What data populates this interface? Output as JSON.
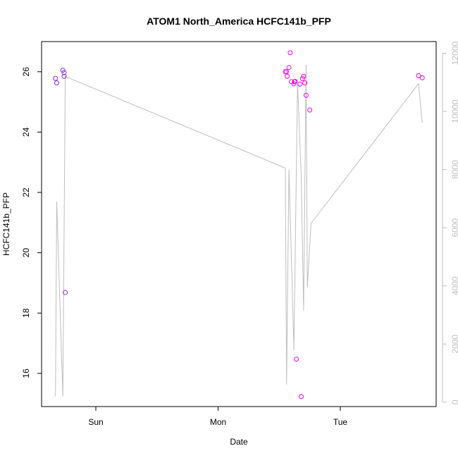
{
  "chart_data": {
    "type": "scatter",
    "title": "ATOM1 North_America HCFC141b_PFP",
    "xlabel": "Date",
    "ylabel": "HCFC141b_PFP",
    "x_ticks": [
      "Sun",
      "Mon",
      "Tue"
    ],
    "y_ticks": [
      16,
      18,
      20,
      22,
      24,
      26
    ],
    "y2_ticks": [
      0,
      2000,
      4000,
      6000,
      8000,
      10000,
      12000
    ],
    "ylim": [
      14.9,
      27.0
    ],
    "y2lim": [
      -150,
      12400
    ],
    "grid": false,
    "colors": {
      "points_early": "#8a2be2",
      "points_late": "#ee00ee",
      "line": "#bebebe",
      "right_axis": "#bdbdbd"
    },
    "series": [
      {
        "kind": "points",
        "axis": "left",
        "x_days": [
          -0.33,
          -0.32,
          -0.27,
          -0.26,
          -0.26,
          -0.25,
          1.55,
          1.56,
          1.565,
          1.58,
          1.59,
          1.6,
          1.62,
          1.625,
          1.63,
          1.64,
          1.67,
          1.68,
          1.69,
          1.7,
          1.71,
          1.72,
          1.75,
          2.64,
          2.67
        ],
        "y": [
          25.78,
          25.63,
          26.05,
          25.97,
          25.85,
          18.68,
          26.0,
          26.0,
          25.85,
          26.14,
          26.63,
          25.67,
          25.6,
          25.67,
          25.68,
          16.47,
          25.59,
          15.23,
          25.77,
          25.85,
          25.63,
          25.22,
          24.73,
          25.87,
          25.8
        ]
      },
      {
        "kind": "line",
        "axis": "right",
        "x_days": [
          -0.33,
          -0.32,
          -0.27,
          -0.25,
          1.55,
          1.56,
          1.58,
          1.62,
          1.65,
          1.68,
          1.7,
          1.72,
          1.73,
          1.76,
          2.64,
          2.67
        ],
        "y": [
          200,
          6900,
          200,
          11200,
          8050,
          600,
          8000,
          1800,
          11000,
          7750,
          3150,
          11600,
          3950,
          6150,
          10950,
          9600
        ]
      }
    ]
  }
}
